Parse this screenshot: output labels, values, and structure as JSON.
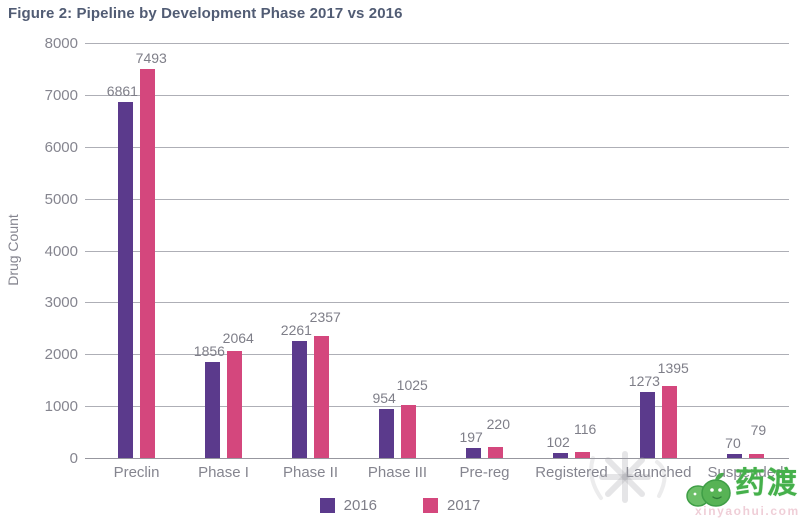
{
  "chart_data": {
    "type": "bar",
    "title": "Figure 2: Pipeline by Development Phase 2017 vs 2016",
    "categories": [
      "Preclin",
      "Phase I",
      "Phase II",
      "Phase III",
      "Pre-reg",
      "Registered",
      "Launched",
      "Suspended"
    ],
    "series": [
      {
        "name": "2016",
        "color": "#5b3a8c",
        "values": [
          6861,
          1856,
          2261,
          954,
          197,
          102,
          1273,
          70
        ]
      },
      {
        "name": "2017",
        "color": "#d4477d",
        "values": [
          7493,
          2064,
          2357,
          1025,
          220,
          116,
          1395,
          79
        ]
      }
    ],
    "xlabel": "",
    "ylabel": "Drug Count",
    "ylim": [
      0,
      8000
    ],
    "yticks": [
      0,
      1000,
      2000,
      3000,
      4000,
      5000,
      6000,
      7000,
      8000
    ],
    "grid": true,
    "value_labels": true,
    "legend_position": "bottom"
  },
  "colors": {
    "bar_2016": "#5b3a8c",
    "bar_2017": "#d4477d",
    "title_text": "#515c74",
    "axis_text": "#85858f",
    "gridline": "#aeafb6",
    "watermark_green": "#45b04b"
  },
  "watermark": {
    "brand_text": "药渡",
    "url_text": "xinyaohui.com"
  }
}
